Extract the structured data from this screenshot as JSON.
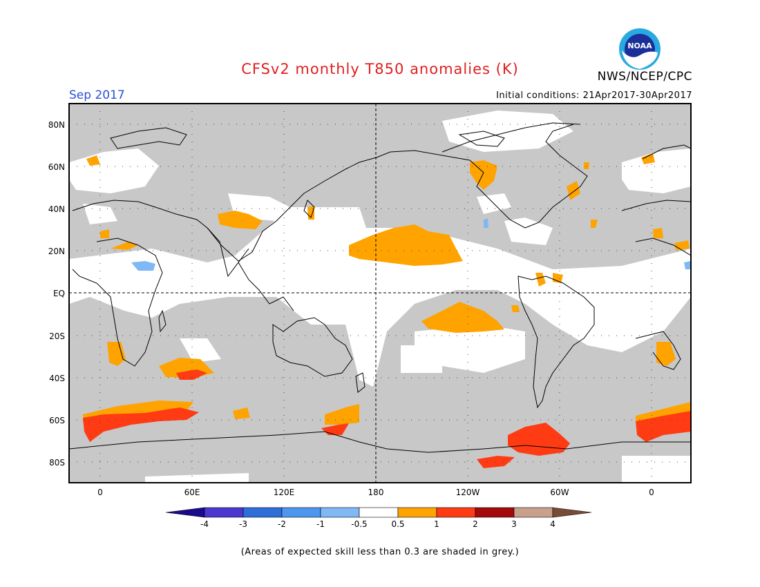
{
  "title": "CFSv2 monthly T850 anomalies (K)",
  "org": "NWS/NCEP/CPC",
  "logo_text": "NOAA",
  "month": "Sep 2017",
  "initial_conditions": "Initial conditions: 21Apr2017-30Apr2017",
  "footnote": "(Areas of expected skill less than 0.3 are shaded in grey.)",
  "lat_labels": [
    "80N",
    "60N",
    "40N",
    "20N",
    "EQ",
    "20S",
    "40S",
    "60S",
    "80S"
  ],
  "lon_labels": [
    "0",
    "60E",
    "120E",
    "180",
    "120W",
    "60W",
    "0"
  ],
  "colorbar": {
    "tick_labels": [
      "-4",
      "-3",
      "-2",
      "-1",
      "-0.5",
      "0.5",
      "1",
      "2",
      "3",
      "4"
    ],
    "colors": [
      "#1a0a8c",
      "#4a38cf",
      "#2d6fd6",
      "#4d97ee",
      "#7fb8f5",
      "#ffffff",
      "#ffa300",
      "#ff3b14",
      "#a50a0a",
      "#c9a08c",
      "#7a4a38"
    ]
  },
  "colors": {
    "grey_low_skill": "#c8c8c8",
    "anomaly_0_5_to_1": "#ffa300",
    "anomaly_1_to_2": "#ff3b14",
    "anomaly_neg_0_5_to_neg_1": "#7fb8f5"
  }
}
